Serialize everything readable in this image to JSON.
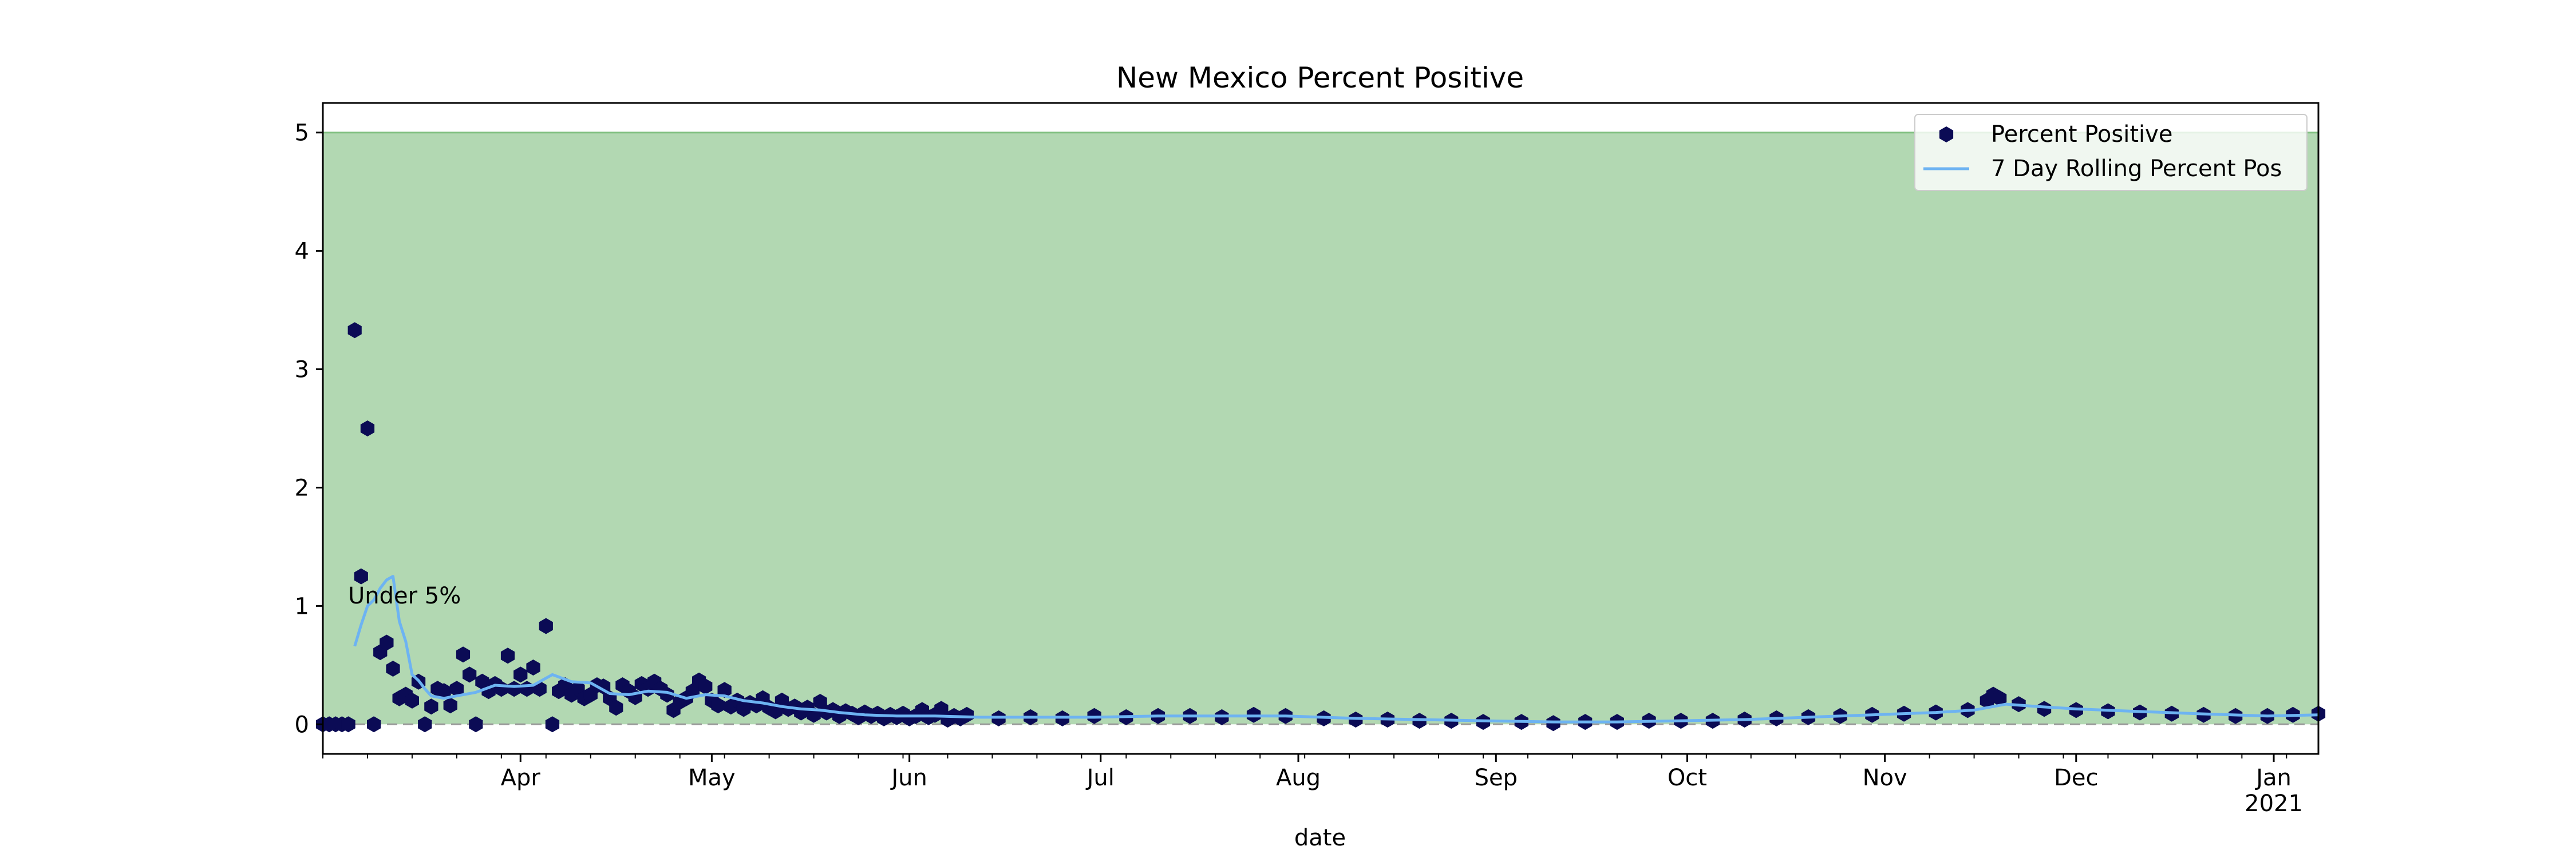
{
  "chart_data": {
    "type": "scatter",
    "title": "New Mexico Percent Positive",
    "xlabel": "date",
    "ylabel": "",
    "x_range": [
      "2020-03-01",
      "2021-01-08"
    ],
    "ylim": [
      -0.25,
      5.25
    ],
    "yticks": [
      0,
      1,
      2,
      3,
      4,
      5
    ],
    "xticks": [
      {
        "date": "2020-04-01",
        "label": "Apr",
        "sublabel": ""
      },
      {
        "date": "2020-05-01",
        "label": "May",
        "sublabel": ""
      },
      {
        "date": "2020-06-01",
        "label": "Jun",
        "sublabel": ""
      },
      {
        "date": "2020-07-01",
        "label": "Jul",
        "sublabel": ""
      },
      {
        "date": "2020-08-01",
        "label": "Aug",
        "sublabel": ""
      },
      {
        "date": "2020-09-01",
        "label": "Sep",
        "sublabel": ""
      },
      {
        "date": "2020-10-01",
        "label": "Oct",
        "sublabel": ""
      },
      {
        "date": "2020-11-01",
        "label": "Nov",
        "sublabel": ""
      },
      {
        "date": "2020-12-01",
        "label": "Dec",
        "sublabel": ""
      },
      {
        "date": "2021-01-01",
        "label": "Jan",
        "sublabel": "2021"
      }
    ],
    "grid": false,
    "legend_position": "top-right",
    "shaded_region": {
      "y_from": 0,
      "y_to": 5,
      "label": "Under 5%",
      "label_at": {
        "x": "2020-03-05",
        "y": 1.0
      }
    },
    "reference_line": {
      "y": 0
    },
    "colors": {
      "band": "#b2d8b2",
      "band_edge": "#7fbf7f",
      "points": "#0b0b55",
      "line": "#6db3f2",
      "refline": "#999999"
    },
    "series": [
      {
        "name": "Percent Positive",
        "kind": "scatter",
        "points": [
          {
            "x": "2020-03-01",
            "y": 0
          },
          {
            "x": "2020-03-02",
            "y": 0
          },
          {
            "x": "2020-03-03",
            "y": 0
          },
          {
            "x": "2020-03-04",
            "y": 0
          },
          {
            "x": "2020-03-05",
            "y": 0
          },
          {
            "x": "2020-03-06",
            "y": 3.33
          },
          {
            "x": "2020-03-07",
            "y": 1.25
          },
          {
            "x": "2020-03-08",
            "y": 2.5
          },
          {
            "x": "2020-03-09",
            "y": 0
          },
          {
            "x": "2020-03-10",
            "y": 0.61
          },
          {
            "x": "2020-03-11",
            "y": 0.69
          },
          {
            "x": "2020-03-12",
            "y": 0.47
          },
          {
            "x": "2020-03-13",
            "y": 0.22
          },
          {
            "x": "2020-03-14",
            "y": 0.25
          },
          {
            "x": "2020-03-15",
            "y": 0.2
          },
          {
            "x": "2020-03-16",
            "y": 0.36
          },
          {
            "x": "2020-03-17",
            "y": 0
          },
          {
            "x": "2020-03-18",
            "y": 0.15
          },
          {
            "x": "2020-03-19",
            "y": 0.3
          },
          {
            "x": "2020-03-20",
            "y": 0.28
          },
          {
            "x": "2020-03-21",
            "y": 0.16
          },
          {
            "x": "2020-03-22",
            "y": 0.3
          },
          {
            "x": "2020-03-23",
            "y": 0.59
          },
          {
            "x": "2020-03-24",
            "y": 0.42
          },
          {
            "x": "2020-03-25",
            "y": 0
          },
          {
            "x": "2020-03-26",
            "y": 0.36
          },
          {
            "x": "2020-03-27",
            "y": 0.28
          },
          {
            "x": "2020-03-28",
            "y": 0.34
          },
          {
            "x": "2020-03-29",
            "y": 0.3
          },
          {
            "x": "2020-03-30",
            "y": 0.58
          },
          {
            "x": "2020-03-31",
            "y": 0.3
          },
          {
            "x": "2020-04-01",
            "y": 0.42
          },
          {
            "x": "2020-04-02",
            "y": 0.3
          },
          {
            "x": "2020-04-03",
            "y": 0.48
          },
          {
            "x": "2020-04-04",
            "y": 0.3
          },
          {
            "x": "2020-04-05",
            "y": 0.83
          },
          {
            "x": "2020-04-06",
            "y": 0
          },
          {
            "x": "2020-04-07",
            "y": 0.28
          },
          {
            "x": "2020-04-08",
            "y": 0.33
          },
          {
            "x": "2020-04-09",
            "y": 0.25
          },
          {
            "x": "2020-04-10",
            "y": 0.3
          },
          {
            "x": "2020-04-11",
            "y": 0.22
          },
          {
            "x": "2020-04-12",
            "y": 0.25
          },
          {
            "x": "2020-04-13",
            "y": 0.33
          },
          {
            "x": "2020-04-14",
            "y": 0.32
          },
          {
            "x": "2020-04-15",
            "y": 0.22
          },
          {
            "x": "2020-04-16",
            "y": 0.14
          },
          {
            "x": "2020-04-17",
            "y": 0.33
          },
          {
            "x": "2020-04-18",
            "y": 0.28
          },
          {
            "x": "2020-04-19",
            "y": 0.23
          },
          {
            "x": "2020-04-20",
            "y": 0.34
          },
          {
            "x": "2020-04-21",
            "y": 0.3
          },
          {
            "x": "2020-04-22",
            "y": 0.36
          },
          {
            "x": "2020-04-23",
            "y": 0.3
          },
          {
            "x": "2020-04-24",
            "y": 0.25
          },
          {
            "x": "2020-04-25",
            "y": 0.12
          },
          {
            "x": "2020-04-26",
            "y": 0.19
          },
          {
            "x": "2020-04-27",
            "y": 0.22
          },
          {
            "x": "2020-04-28",
            "y": 0.28
          },
          {
            "x": "2020-04-29",
            "y": 0.37
          },
          {
            "x": "2020-04-30",
            "y": 0.32
          },
          {
            "x": "2020-05-01",
            "y": 0.2
          },
          {
            "x": "2020-05-02",
            "y": 0.16
          },
          {
            "x": "2020-05-03",
            "y": 0.29
          },
          {
            "x": "2020-05-04",
            "y": 0.15
          },
          {
            "x": "2020-05-05",
            "y": 0.2
          },
          {
            "x": "2020-05-06",
            "y": 0.13
          },
          {
            "x": "2020-05-07",
            "y": 0.18
          },
          {
            "x": "2020-05-08",
            "y": 0.16
          },
          {
            "x": "2020-05-09",
            "y": 0.22
          },
          {
            "x": "2020-05-10",
            "y": 0.14
          },
          {
            "x": "2020-05-11",
            "y": 0.11
          },
          {
            "x": "2020-05-12",
            "y": 0.2
          },
          {
            "x": "2020-05-13",
            "y": 0.13
          },
          {
            "x": "2020-05-14",
            "y": 0.15
          },
          {
            "x": "2020-05-15",
            "y": 0.1
          },
          {
            "x": "2020-05-16",
            "y": 0.14
          },
          {
            "x": "2020-05-17",
            "y": 0.08
          },
          {
            "x": "2020-05-18",
            "y": 0.19
          },
          {
            "x": "2020-05-19",
            "y": 0.1
          },
          {
            "x": "2020-05-20",
            "y": 0.12
          },
          {
            "x": "2020-05-21",
            "y": 0.07
          },
          {
            "x": "2020-05-22",
            "y": 0.11
          },
          {
            "x": "2020-05-23",
            "y": 0.09
          },
          {
            "x": "2020-05-24",
            "y": 0.06
          },
          {
            "x": "2020-05-25",
            "y": 0.1
          },
          {
            "x": "2020-05-26",
            "y": 0.07
          },
          {
            "x": "2020-05-27",
            "y": 0.09
          },
          {
            "x": "2020-05-28",
            "y": 0.05
          },
          {
            "x": "2020-05-29",
            "y": 0.08
          },
          {
            "x": "2020-05-30",
            "y": 0.06
          },
          {
            "x": "2020-05-31",
            "y": 0.09
          },
          {
            "x": "2020-06-01",
            "y": 0.05
          },
          {
            "x": "2020-06-02",
            "y": 0.07
          },
          {
            "x": "2020-06-03",
            "y": 0.12
          },
          {
            "x": "2020-06-04",
            "y": 0.06
          },
          {
            "x": "2020-06-05",
            "y": 0.08
          },
          {
            "x": "2020-06-06",
            "y": 0.13
          },
          {
            "x": "2020-06-07",
            "y": 0.04
          },
          {
            "x": "2020-06-08",
            "y": 0.07
          },
          {
            "x": "2020-06-09",
            "y": 0.05
          },
          {
            "x": "2020-06-10",
            "y": 0.08
          },
          {
            "x": "2020-06-15",
            "y": 0.05
          },
          {
            "x": "2020-06-20",
            "y": 0.06
          },
          {
            "x": "2020-06-25",
            "y": 0.05
          },
          {
            "x": "2020-06-30",
            "y": 0.07
          },
          {
            "x": "2020-07-05",
            "y": 0.06
          },
          {
            "x": "2020-07-10",
            "y": 0.07
          },
          {
            "x": "2020-07-15",
            "y": 0.07
          },
          {
            "x": "2020-07-20",
            "y": 0.06
          },
          {
            "x": "2020-07-25",
            "y": 0.08
          },
          {
            "x": "2020-07-30",
            "y": 0.07
          },
          {
            "x": "2020-08-05",
            "y": 0.05
          },
          {
            "x": "2020-08-10",
            "y": 0.04
          },
          {
            "x": "2020-08-15",
            "y": 0.04
          },
          {
            "x": "2020-08-20",
            "y": 0.03
          },
          {
            "x": "2020-08-25",
            "y": 0.03
          },
          {
            "x": "2020-08-30",
            "y": 0.02
          },
          {
            "x": "2020-09-05",
            "y": 0.02
          },
          {
            "x": "2020-09-10",
            "y": 0.01
          },
          {
            "x": "2020-09-15",
            "y": 0.02
          },
          {
            "x": "2020-09-20",
            "y": 0.02
          },
          {
            "x": "2020-09-25",
            "y": 0.03
          },
          {
            "x": "2020-09-30",
            "y": 0.03
          },
          {
            "x": "2020-10-05",
            "y": 0.03
          },
          {
            "x": "2020-10-10",
            "y": 0.04
          },
          {
            "x": "2020-10-15",
            "y": 0.05
          },
          {
            "x": "2020-10-20",
            "y": 0.06
          },
          {
            "x": "2020-10-25",
            "y": 0.07
          },
          {
            "x": "2020-10-30",
            "y": 0.08
          },
          {
            "x": "2020-11-04",
            "y": 0.09
          },
          {
            "x": "2020-11-09",
            "y": 0.1
          },
          {
            "x": "2020-11-14",
            "y": 0.12
          },
          {
            "x": "2020-11-17",
            "y": 0.2
          },
          {
            "x": "2020-11-18",
            "y": 0.25
          },
          {
            "x": "2020-11-19",
            "y": 0.22
          },
          {
            "x": "2020-11-22",
            "y": 0.17
          },
          {
            "x": "2020-11-26",
            "y": 0.13
          },
          {
            "x": "2020-12-01",
            "y": 0.12
          },
          {
            "x": "2020-12-06",
            "y": 0.11
          },
          {
            "x": "2020-12-11",
            "y": 0.1
          },
          {
            "x": "2020-12-16",
            "y": 0.09
          },
          {
            "x": "2020-12-21",
            "y": 0.08
          },
          {
            "x": "2020-12-26",
            "y": 0.07
          },
          {
            "x": "2020-12-31",
            "y": 0.07
          },
          {
            "x": "2021-01-04",
            "y": 0.08
          },
          {
            "x": "2021-01-08",
            "y": 0.09
          }
        ]
      },
      {
        "name": "7 Day Rolling Percent Pos",
        "kind": "line",
        "points": [
          {
            "x": "2020-03-06",
            "y": 0.66
          },
          {
            "x": "2020-03-07",
            "y": 0.84
          },
          {
            "x": "2020-03-08",
            "y": 1.0
          },
          {
            "x": "2020-03-09",
            "y": 1.05
          },
          {
            "x": "2020-03-10",
            "y": 1.15
          },
          {
            "x": "2020-03-11",
            "y": 1.22
          },
          {
            "x": "2020-03-12",
            "y": 1.25
          },
          {
            "x": "2020-03-13",
            "y": 0.87
          },
          {
            "x": "2020-03-14",
            "y": 0.7
          },
          {
            "x": "2020-03-15",
            "y": 0.42
          },
          {
            "x": "2020-03-16",
            "y": 0.37
          },
          {
            "x": "2020-03-17",
            "y": 0.3
          },
          {
            "x": "2020-03-18",
            "y": 0.24
          },
          {
            "x": "2020-03-20",
            "y": 0.22
          },
          {
            "x": "2020-03-22",
            "y": 0.24
          },
          {
            "x": "2020-03-25",
            "y": 0.27
          },
          {
            "x": "2020-03-28",
            "y": 0.33
          },
          {
            "x": "2020-03-31",
            "y": 0.32
          },
          {
            "x": "2020-04-03",
            "y": 0.33
          },
          {
            "x": "2020-04-06",
            "y": 0.42
          },
          {
            "x": "2020-04-09",
            "y": 0.36
          },
          {
            "x": "2020-04-12",
            "y": 0.35
          },
          {
            "x": "2020-04-15",
            "y": 0.26
          },
          {
            "x": "2020-04-18",
            "y": 0.25
          },
          {
            "x": "2020-04-21",
            "y": 0.28
          },
          {
            "x": "2020-04-24",
            "y": 0.27
          },
          {
            "x": "2020-04-27",
            "y": 0.22
          },
          {
            "x": "2020-04-30",
            "y": 0.25
          },
          {
            "x": "2020-05-03",
            "y": 0.24
          },
          {
            "x": "2020-05-06",
            "y": 0.2
          },
          {
            "x": "2020-05-09",
            "y": 0.18
          },
          {
            "x": "2020-05-12",
            "y": 0.15
          },
          {
            "x": "2020-05-15",
            "y": 0.13
          },
          {
            "x": "2020-05-18",
            "y": 0.12
          },
          {
            "x": "2020-05-21",
            "y": 0.1
          },
          {
            "x": "2020-05-25",
            "y": 0.08
          },
          {
            "x": "2020-05-30",
            "y": 0.07
          },
          {
            "x": "2020-06-05",
            "y": 0.07
          },
          {
            "x": "2020-06-12",
            "y": 0.06
          },
          {
            "x": "2020-06-20",
            "y": 0.06
          },
          {
            "x": "2020-06-30",
            "y": 0.06
          },
          {
            "x": "2020-07-10",
            "y": 0.07
          },
          {
            "x": "2020-07-20",
            "y": 0.07
          },
          {
            "x": "2020-07-30",
            "y": 0.07
          },
          {
            "x": "2020-08-10",
            "y": 0.05
          },
          {
            "x": "2020-08-20",
            "y": 0.04
          },
          {
            "x": "2020-08-30",
            "y": 0.03
          },
          {
            "x": "2020-09-10",
            "y": 0.02
          },
          {
            "x": "2020-09-20",
            "y": 0.02
          },
          {
            "x": "2020-09-30",
            "y": 0.03
          },
          {
            "x": "2020-10-10",
            "y": 0.04
          },
          {
            "x": "2020-10-20",
            "y": 0.06
          },
          {
            "x": "2020-10-30",
            "y": 0.08
          },
          {
            "x": "2020-11-09",
            "y": 0.1
          },
          {
            "x": "2020-11-15",
            "y": 0.12
          },
          {
            "x": "2020-11-20",
            "y": 0.17
          },
          {
            "x": "2020-11-25",
            "y": 0.15
          },
          {
            "x": "2020-12-01",
            "y": 0.13
          },
          {
            "x": "2020-12-10",
            "y": 0.11
          },
          {
            "x": "2020-12-20",
            "y": 0.09
          },
          {
            "x": "2020-12-31",
            "y": 0.07
          },
          {
            "x": "2021-01-08",
            "y": 0.08
          }
        ]
      }
    ]
  }
}
